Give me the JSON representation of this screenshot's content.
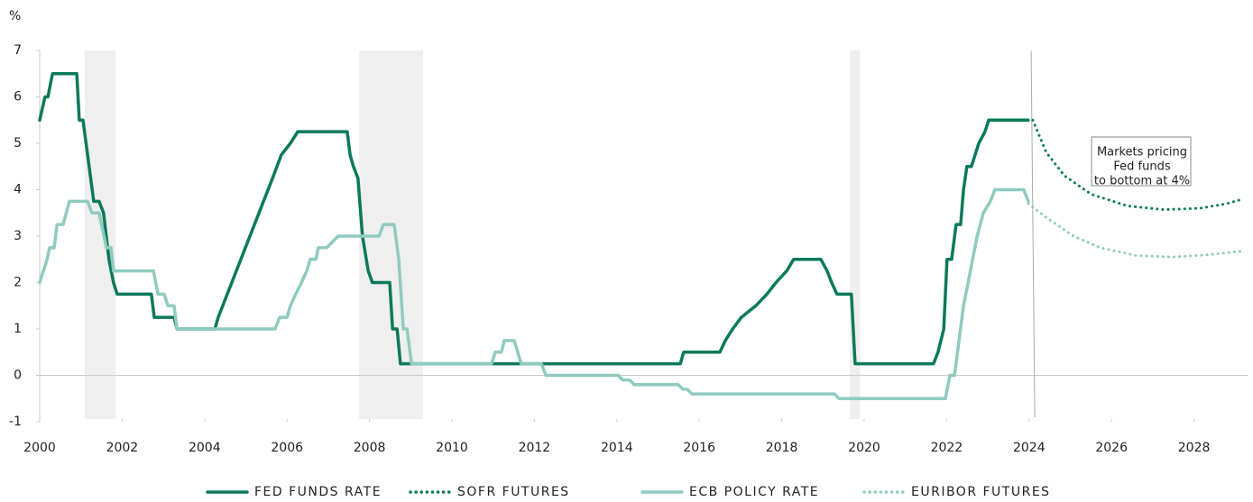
{
  "chart_data": {
    "type": "line",
    "y_axis_label": "%",
    "xlim": [
      2000,
      2029.3
    ],
    "ylim": [
      -1,
      7
    ],
    "xticks": [
      2000,
      2002,
      2004,
      2006,
      2008,
      2010,
      2012,
      2014,
      2016,
      2018,
      2020,
      2022,
      2024,
      2026,
      2028
    ],
    "yticks": [
      -1,
      0,
      1,
      2,
      3,
      4,
      5,
      6,
      7
    ],
    "shaded_ranges": [
      [
        2001.09,
        2001.84
      ],
      [
        2007.75,
        2009.3
      ],
      [
        2019.65,
        2019.9
      ]
    ],
    "reference_line_x": 2024.05,
    "annotation": [
      "Markets pricing",
      "Fed funds",
      "to bottom at 4%"
    ],
    "series": [
      {
        "name": "FED FUNDS RATE",
        "color": "#0b7a5a",
        "dash": false,
        "x": [
          2000.0,
          2000.13,
          2000.2,
          2000.31,
          2000.9,
          2000.96,
          2001.05,
          2001.31,
          2001.44,
          2001.55,
          2001.68,
          2001.79,
          2001.88,
          2002.71,
          2002.78,
          2003.26,
          2003.33,
          2004.25,
          2004.33,
          2004.55,
          2004.77,
          2004.99,
          2005.21,
          2005.43,
          2005.65,
          2005.86,
          2006.08,
          2006.26,
          2007.46,
          2007.53,
          2007.61,
          2007.72,
          2007.83,
          2007.97,
          2008.07,
          2008.49,
          2008.56,
          2008.67,
          2008.75,
          2015.54,
          2015.62,
          2016.5,
          2016.63,
          2016.81,
          2017.02,
          2017.37,
          2017.64,
          2017.86,
          2018.12,
          2018.29,
          2018.95,
          2019.1,
          2019.21,
          2019.34,
          2019.69,
          2019.78,
          2021.68,
          2021.79,
          2021.93,
          2022.01,
          2022.12,
          2022.23,
          2022.34,
          2022.41,
          2022.49,
          2022.6,
          2022.78,
          2022.93,
          2023.02,
          2023.98
        ],
        "values": [
          5.5,
          6.0,
          6.0,
          6.5,
          6.5,
          5.5,
          5.5,
          3.75,
          3.75,
          3.5,
          2.5,
          2.0,
          1.75,
          1.75,
          1.25,
          1.25,
          1.0,
          1.0,
          1.25,
          1.75,
          2.25,
          2.75,
          3.25,
          3.75,
          4.25,
          4.75,
          5.0,
          5.25,
          5.25,
          4.75,
          4.5,
          4.25,
          3.0,
          2.25,
          2.0,
          2.0,
          1.0,
          1.0,
          0.25,
          0.25,
          0.5,
          0.5,
          0.75,
          1.0,
          1.25,
          1.5,
          1.75,
          2.0,
          2.25,
          2.5,
          2.5,
          2.25,
          2.0,
          1.75,
          1.75,
          0.25,
          0.25,
          0.5,
          1.0,
          2.5,
          2.5,
          3.25,
          3.25,
          4.0,
          4.5,
          4.5,
          5.0,
          5.25,
          5.5,
          5.5
        ]
      },
      {
        "name": "SOFR FUTURES",
        "color": "#0b7a5a",
        "dash": true,
        "x": [
          2024.09,
          2024.42,
          2024.86,
          2025.51,
          2026.39,
          2027.26,
          2028.14,
          2028.8,
          2029.19
        ],
        "values": [
          5.5,
          4.8,
          4.3,
          3.9,
          3.65,
          3.57,
          3.6,
          3.7,
          3.8
        ]
      },
      {
        "name": "ECB POLICY RATE",
        "color": "#8fcbbf",
        "dash": false,
        "x": [
          2000.0,
          2000.18,
          2000.24,
          2000.35,
          2000.42,
          2000.57,
          2000.72,
          2001.16,
          2001.27,
          2001.44,
          2001.62,
          2001.73,
          2001.79,
          2002.76,
          2002.87,
          2003.02,
          2003.11,
          2003.26,
          2003.33,
          2005.71,
          2005.82,
          2006.0,
          2006.08,
          2006.21,
          2006.35,
          2006.48,
          2006.56,
          2006.7,
          2006.76,
          2006.96,
          2007.24,
          2008.23,
          2008.34,
          2008.6,
          2008.71,
          2008.82,
          2008.91,
          2009.02,
          2010.96,
          2011.05,
          2011.2,
          2011.27,
          2011.51,
          2011.68,
          2012.17,
          2012.28,
          2014.03,
          2014.14,
          2014.31,
          2014.42,
          2015.49,
          2015.6,
          2015.71,
          2015.82,
          2019.28,
          2019.39,
          2021.97,
          2022.08,
          2022.19,
          2022.3,
          2022.41,
          2022.52,
          2022.63,
          2022.74,
          2022.89,
          2023.06,
          2023.17,
          2023.87,
          2023.98
        ],
        "values": [
          2.0,
          2.5,
          2.75,
          2.75,
          3.25,
          3.25,
          3.75,
          3.75,
          3.5,
          3.5,
          2.75,
          2.75,
          2.25,
          2.25,
          1.75,
          1.75,
          1.5,
          1.5,
          1.0,
          1.0,
          1.25,
          1.25,
          1.5,
          1.75,
          2.0,
          2.25,
          2.5,
          2.5,
          2.75,
          2.75,
          3.0,
          3.0,
          3.25,
          3.25,
          2.5,
          1.0,
          1.0,
          0.25,
          0.25,
          0.5,
          0.5,
          0.75,
          0.75,
          0.25,
          0.25,
          0.0,
          0.0,
          -0.1,
          -0.1,
          -0.2,
          -0.2,
          -0.3,
          -0.3,
          -0.4,
          -0.4,
          -0.5,
          -0.5,
          0.0,
          0.0,
          0.75,
          1.5,
          2.0,
          2.5,
          3.0,
          3.5,
          3.75,
          4.0,
          4.0,
          3.75
        ]
      },
      {
        "name": "EURIBOR FUTURES",
        "color": "#8fcbbf",
        "dash": true,
        "x": [
          2023.98,
          2024.42,
          2025.08,
          2025.73,
          2026.61,
          2027.48,
          2028.36,
          2029.19
        ],
        "values": [
          3.7,
          3.4,
          3.0,
          2.75,
          2.58,
          2.55,
          2.6,
          2.68
        ]
      }
    ]
  }
}
